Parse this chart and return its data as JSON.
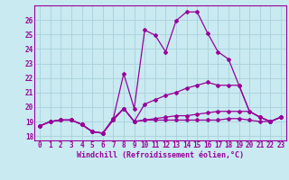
{
  "title": "",
  "xlabel": "Windchill (Refroidissement éolien,°C)",
  "ylabel": "",
  "background_color": "#c8eaf0",
  "grid_color": "#aad0dc",
  "line_color": "#990099",
  "xlim": [
    -0.5,
    23.5
  ],
  "ylim": [
    17.7,
    27.0
  ],
  "yticks": [
    18,
    19,
    20,
    21,
    22,
    23,
    24,
    25,
    26
  ],
  "xticks": [
    0,
    1,
    2,
    3,
    4,
    5,
    6,
    7,
    8,
    9,
    10,
    11,
    12,
    13,
    14,
    15,
    16,
    17,
    18,
    19,
    20,
    21,
    22,
    23
  ],
  "lines": [
    [
      18.7,
      19.0,
      19.1,
      19.1,
      18.8,
      18.3,
      18.2,
      19.1,
      19.9,
      19.0,
      19.1,
      19.1,
      19.1,
      19.1,
      19.1,
      19.1,
      19.1,
      19.1,
      19.2,
      19.2,
      19.1,
      19.0,
      19.0,
      19.3
    ],
    [
      18.7,
      19.0,
      19.1,
      19.1,
      18.8,
      18.3,
      18.2,
      19.2,
      22.3,
      19.9,
      25.3,
      24.95,
      23.8,
      25.95,
      26.55,
      26.55,
      25.1,
      23.8,
      23.3,
      21.5,
      19.7,
      19.3,
      19.0,
      19.3
    ],
    [
      18.7,
      19.0,
      19.1,
      19.1,
      18.8,
      18.3,
      18.2,
      19.2,
      19.9,
      19.0,
      20.2,
      20.5,
      20.8,
      21.0,
      21.3,
      21.5,
      21.7,
      21.5,
      21.5,
      21.5,
      19.7,
      19.3,
      19.0,
      19.3
    ],
    [
      18.7,
      19.0,
      19.1,
      19.1,
      18.8,
      18.3,
      18.2,
      19.1,
      19.9,
      19.0,
      19.1,
      19.2,
      19.3,
      19.4,
      19.4,
      19.5,
      19.6,
      19.7,
      19.7,
      19.7,
      19.7,
      19.3,
      19.0,
      19.3
    ]
  ],
  "tick_fontsize": 5.5,
  "xlabel_fontsize": 6,
  "marker_size": 2.0,
  "line_width": 0.9
}
